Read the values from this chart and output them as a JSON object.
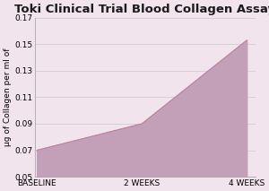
{
  "title": "Toki Clinical Trial Blood Collagen Assay",
  "x_labels": [
    "BASELINE",
    "2 WEEKS",
    "4 WEEKS"
  ],
  "x_values": [
    0,
    1,
    2
  ],
  "y_values": [
    0.07,
    0.09,
    0.153
  ],
  "ylim": [
    0.05,
    0.17
  ],
  "yticks": [
    0.05,
    0.07,
    0.09,
    0.11,
    0.13,
    0.15,
    0.17
  ],
  "ylabel": "μg of Collagen per ml of",
  "fill_color": "#c4a0b8",
  "line_color": "#b87fa0",
  "background_color": "#f2e4ed",
  "title_fontsize": 9.5,
  "label_fontsize": 6.5,
  "tick_fontsize": 6.5,
  "grid_color": "#c8c8c8",
  "spine_color": "#aaaaaa"
}
